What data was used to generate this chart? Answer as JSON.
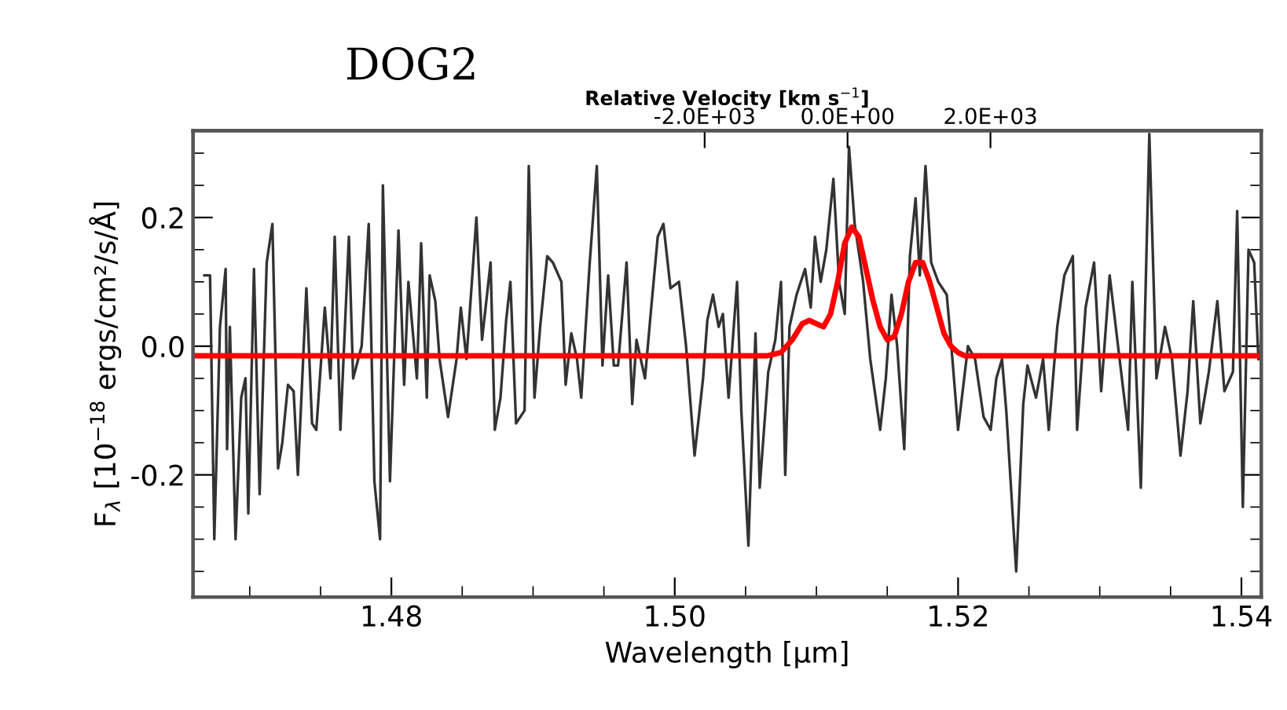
{
  "chart_data": {
    "type": "line",
    "title": "DOG2",
    "xlabel": "Wavelength [μm]",
    "ylabel": "F$_{λ}$ [10$^{−18}$ ergs/cm²/s/Å]",
    "x2label": "Relative Velocity [km s$^{−1}$]",
    "series": [
      {
        "color": "#333333",
        "x": [
          1.4668,
          1.4672,
          1.4675,
          1.4679,
          1.4683,
          1.4684,
          1.4686,
          1.469,
          1.4694,
          1.4697,
          1.4699,
          1.4703,
          1.4707,
          1.4712,
          1.4716,
          1.472,
          1.4723,
          1.4727,
          1.4731,
          1.4734,
          1.474,
          1.4744,
          1.4747,
          1.4753,
          1.4757,
          1.476,
          1.4764,
          1.477,
          1.4773,
          1.4779,
          1.4784,
          1.4788,
          1.4792,
          1.4794,
          1.4799,
          1.4805,
          1.4809,
          1.4812,
          1.4818,
          1.4821,
          1.4825,
          1.4827,
          1.4831,
          1.4834,
          1.484,
          1.4846,
          1.4849,
          1.4853,
          1.486,
          1.4864,
          1.487,
          1.4873,
          1.4877,
          1.4881,
          1.4884,
          1.4888,
          1.4894,
          1.4897,
          1.4901,
          1.4905,
          1.491,
          1.4914,
          1.492,
          1.4923,
          1.4927,
          1.4931,
          1.4934,
          1.494,
          1.4945,
          1.4949,
          1.4953,
          1.4957,
          1.496,
          1.4966,
          1.497,
          1.4973,
          1.4979,
          1.4983,
          1.4988,
          1.4992,
          1.4997,
          1.5003,
          1.5008,
          1.5014,
          1.502,
          1.5023,
          1.5027,
          1.5031,
          1.5034,
          1.5038,
          1.5044,
          1.5047,
          1.5052,
          1.5057,
          1.506,
          1.5066,
          1.5071,
          1.5075,
          1.5078,
          1.5081,
          1.5086,
          1.5092,
          1.5096,
          1.5099,
          1.5103,
          1.5107,
          1.5112,
          1.5116,
          1.512,
          1.5123,
          1.5127,
          1.5133,
          1.5138,
          1.5145,
          1.5149,
          1.5153,
          1.5157,
          1.5162,
          1.5166,
          1.517,
          1.5173,
          1.5177,
          1.5181,
          1.5186,
          1.5192,
          1.5196,
          1.52,
          1.5207,
          1.5212,
          1.5218,
          1.5223,
          1.5227,
          1.5231,
          1.5234,
          1.5241,
          1.5246,
          1.5249,
          1.5255,
          1.526,
          1.5264,
          1.527,
          1.5275,
          1.5281,
          1.5284,
          1.529,
          1.5296,
          1.5301,
          1.5307,
          1.5314,
          1.532,
          1.5323,
          1.5329,
          1.5335,
          1.534,
          1.5346,
          1.5351,
          1.5357,
          1.5362,
          1.5366,
          1.5371,
          1.5377,
          1.5383,
          1.5388,
          1.5394,
          1.5397,
          1.5401,
          1.5405,
          1.5409,
          1.5412
        ],
        "values": [
          0.11,
          0.11,
          -0.3,
          0.03,
          0.12,
          -0.16,
          0.03,
          -0.3,
          -0.08,
          -0.05,
          -0.26,
          0.12,
          -0.23,
          0.13,
          0.19,
          -0.19,
          -0.15,
          -0.06,
          -0.07,
          -0.2,
          0.09,
          -0.12,
          -0.13,
          0.06,
          -0.05,
          0.17,
          -0.13,
          0.17,
          -0.05,
          0.0,
          0.19,
          -0.21,
          -0.3,
          0.25,
          -0.21,
          0.18,
          -0.06,
          0.1,
          -0.05,
          0.16,
          -0.08,
          0.11,
          0.07,
          -0.02,
          -0.11,
          -0.02,
          0.06,
          -0.02,
          0.2,
          0.01,
          0.13,
          -0.13,
          -0.08,
          0.04,
          0.1,
          -0.12,
          -0.1,
          0.28,
          -0.08,
          0.03,
          0.14,
          0.13,
          0.1,
          -0.06,
          0.02,
          -0.02,
          -0.08,
          0.13,
          0.28,
          -0.03,
          0.11,
          -0.03,
          -0.03,
          0.13,
          -0.09,
          0.01,
          -0.05,
          0.05,
          0.17,
          0.19,
          0.09,
          0.1,
          0.0,
          -0.17,
          -0.05,
          0.04,
          0.08,
          0.03,
          0.05,
          -0.08,
          0.1,
          -0.1,
          -0.31,
          0.02,
          -0.22,
          -0.04,
          0.01,
          0.1,
          -0.2,
          0.03,
          0.08,
          0.12,
          0.06,
          0.17,
          0.1,
          0.15,
          0.26,
          0.1,
          0.05,
          0.31,
          0.19,
          0.1,
          -0.02,
          -0.13,
          -0.05,
          0.08,
          0.0,
          -0.16,
          0.14,
          0.23,
          0.11,
          0.28,
          0.13,
          0.1,
          0.08,
          -0.02,
          -0.13,
          0.0,
          -0.02,
          -0.11,
          -0.13,
          -0.05,
          -0.02,
          -0.1,
          -0.35,
          -0.09,
          -0.03,
          -0.08,
          -0.02,
          -0.13,
          0.03,
          0.11,
          0.14,
          -0.13,
          0.06,
          0.13,
          -0.07,
          0.11,
          -0.02,
          -0.13,
          0.1,
          -0.22,
          0.33,
          -0.05,
          0.03,
          -0.02,
          -0.17,
          -0.07,
          0.07,
          -0.12,
          -0.04,
          0.07,
          -0.07,
          -0.04,
          0.21,
          -0.25,
          0.15,
          0.13,
          -0.02
        ]
      },
      {
        "color": "#ff0000",
        "x": [
          1.466,
          1.5065,
          1.5075,
          1.5083,
          1.509,
          1.5095,
          1.51,
          1.5105,
          1.511,
          1.5115,
          1.512,
          1.5125,
          1.513,
          1.5135,
          1.514,
          1.5145,
          1.515,
          1.5155,
          1.516,
          1.5165,
          1.517,
          1.5175,
          1.518,
          1.5185,
          1.519,
          1.5195,
          1.52,
          1.5205,
          1.5414
        ],
        "values": [
          -0.015,
          -0.015,
          -0.01,
          0.01,
          0.035,
          0.04,
          0.035,
          0.03,
          0.05,
          0.1,
          0.16,
          0.185,
          0.17,
          0.12,
          0.07,
          0.03,
          0.01,
          0.015,
          0.05,
          0.1,
          0.13,
          0.13,
          0.1,
          0.06,
          0.02,
          0.0,
          -0.01,
          -0.015,
          -0.015
        ]
      }
    ],
    "xlim": [
      1.466,
      1.5414
    ],
    "ylim": [
      -0.39,
      0.335
    ],
    "x2lim": [
      -9160,
      5790
    ],
    "xticks": [
      {
        "value": 1.47,
        "label": null
      },
      {
        "value": 1.475,
        "label": null
      },
      {
        "value": 1.48,
        "label": "1.48"
      },
      {
        "value": 1.485,
        "label": null
      },
      {
        "value": 1.49,
        "label": null
      },
      {
        "value": 1.495,
        "label": null
      },
      {
        "value": 1.5,
        "label": "1.50"
      },
      {
        "value": 1.505,
        "label": null
      },
      {
        "value": 1.51,
        "label": null
      },
      {
        "value": 1.515,
        "label": null
      },
      {
        "value": 1.52,
        "label": "1.52"
      },
      {
        "value": 1.525,
        "label": null
      },
      {
        "value": 1.53,
        "label": null
      },
      {
        "value": 1.535,
        "label": null
      },
      {
        "value": 1.54,
        "label": "1.54"
      }
    ],
    "yticks": [
      {
        "value": -0.35,
        "label": null
      },
      {
        "value": -0.3,
        "label": null
      },
      {
        "value": -0.25,
        "label": null
      },
      {
        "value": -0.2,
        "label": "-0.2"
      },
      {
        "value": -0.15,
        "label": null
      },
      {
        "value": -0.1,
        "label": null
      },
      {
        "value": -0.05,
        "label": null
      },
      {
        "value": 0,
        "label": "0.0"
      },
      {
        "value": 0.05,
        "label": null
      },
      {
        "value": 0.1,
        "label": null
      },
      {
        "value": 0.15,
        "label": null
      },
      {
        "value": 0.2,
        "label": "0.2"
      },
      {
        "value": 0.25,
        "label": null
      },
      {
        "value": 0.3,
        "label": null
      }
    ],
    "x2ticks": [
      {
        "value": -2000,
        "label": "-2.0E+03"
      },
      {
        "value": 0,
        "label": "0.0E+00"
      },
      {
        "value": 2000,
        "label": "2.0E+03"
      }
    ],
    "grid": false,
    "legend": false,
    "line_style": "solid",
    "marker": "none"
  }
}
